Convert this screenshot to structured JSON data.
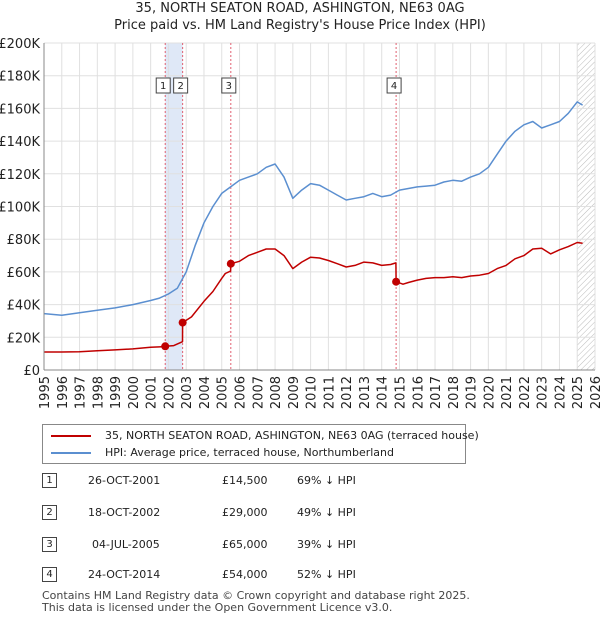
{
  "colors": {
    "price_line": "#c00000",
    "hpi_line": "#5b8fd0",
    "grid": "#e0e0e0",
    "shade": "#dfe8f7",
    "marker_vline": "#e06070",
    "future_hatch": "#bbbbbb"
  },
  "chart_data": {
    "type": "line",
    "title": "35, NORTH SEATON ROAD, ASHINGTON, NE63 0AG",
    "subtitle": "Price paid vs. HM Land Registry's House Price Index (HPI)",
    "x_ticks": [
      "1995",
      "1996",
      "1997",
      "1998",
      "1999",
      "2000",
      "2001",
      "2002",
      "2003",
      "2004",
      "2005",
      "2006",
      "2007",
      "2008",
      "2009",
      "2010",
      "2011",
      "2012",
      "2013",
      "2014",
      "2015",
      "2016",
      "2017",
      "2018",
      "2019",
      "2020",
      "2021",
      "2022",
      "2023",
      "2024",
      "2025",
      "2026"
    ],
    "y_ticks": [
      "£0",
      "£20K",
      "£40K",
      "£60K",
      "£80K",
      "£100K",
      "£120K",
      "£140K",
      "£160K",
      "£180K",
      "£200K"
    ],
    "xlim": [
      1995,
      2026
    ],
    "ylim": [
      0,
      200000
    ],
    "series": [
      {
        "name": "35, NORTH SEATON ROAD, ASHINGTON, NE63 0AG (terraced house)",
        "x": [
          1995.0,
          1996.0,
          1997.0,
          1998.0,
          1999.0,
          2000.0,
          2001.0,
          2001.82,
          2001.83,
          2002.3,
          2002.79,
          2002.8,
          2003.3,
          2004.0,
          2004.5,
          2005.0,
          2005.2,
          2005.5,
          2005.51,
          2006.0,
          2006.5,
          2007.0,
          2007.5,
          2008.0,
          2008.5,
          2009.0,
          2009.5,
          2010.0,
          2010.5,
          2011.0,
          2011.5,
          2012.0,
          2012.5,
          2013.0,
          2013.5,
          2014.0,
          2014.5,
          2014.8,
          2014.81,
          2015.2,
          2015.5,
          2016.0,
          2016.5,
          2017.0,
          2017.5,
          2018.0,
          2018.5,
          2019.0,
          2019.5,
          2020.0,
          2020.5,
          2021.0,
          2021.5,
          2022.0,
          2022.5,
          2023.0,
          2023.5,
          2024.0,
          2024.5,
          2025.0,
          2025.3
        ],
        "values": [
          11000,
          11000,
          11200,
          11800,
          12300,
          12900,
          13900,
          14300,
          14500,
          14900,
          17300,
          29000,
          32500,
          42000,
          48000,
          56000,
          59000,
          60500,
          65000,
          66500,
          70000,
          72000,
          74000,
          74000,
          70000,
          62000,
          66000,
          69000,
          68500,
          67000,
          65000,
          63000,
          64000,
          66000,
          65500,
          64000,
          64500,
          65500,
          54000,
          52500,
          53500,
          55000,
          56000,
          56500,
          56500,
          57000,
          56500,
          57500,
          58000,
          59000,
          62000,
          64000,
          68000,
          70000,
          74000,
          74500,
          71000,
          73500,
          75500,
          78000,
          77500
        ]
      },
      {
        "name": "HPI: Average price, terraced house, Northumberland",
        "x": [
          1995.0,
          1996.0,
          1997.0,
          1998.0,
          1999.0,
          2000.0,
          2001.0,
          2001.5,
          2002.0,
          2002.5,
          2003.0,
          2003.5,
          2004.0,
          2004.5,
          2005.0,
          2005.5,
          2006.0,
          2006.5,
          2007.0,
          2007.5,
          2008.0,
          2008.5,
          2009.0,
          2009.5,
          2010.0,
          2010.5,
          2011.0,
          2011.5,
          2012.0,
          2012.5,
          2013.0,
          2013.5,
          2014.0,
          2014.5,
          2015.0,
          2015.5,
          2016.0,
          2016.5,
          2017.0,
          2017.5,
          2018.0,
          2018.5,
          2019.0,
          2019.5,
          2020.0,
          2020.5,
          2021.0,
          2021.5,
          2022.0,
          2022.5,
          2023.0,
          2023.5,
          2024.0,
          2024.5,
          2025.0,
          2025.3
        ],
        "values": [
          34500,
          33500,
          35000,
          36500,
          38000,
          40000,
          42500,
          44000,
          46500,
          50000,
          60000,
          76000,
          90000,
          100000,
          108000,
          112000,
          116000,
          118000,
          120000,
          124000,
          126000,
          118000,
          105000,
          110000,
          114000,
          113000,
          110000,
          107000,
          104000,
          105000,
          106000,
          108000,
          106000,
          107000,
          110000,
          111000,
          112000,
          112500,
          113000,
          115000,
          116000,
          115500,
          118000,
          120000,
          124000,
          132000,
          140000,
          146000,
          150000,
          152000,
          148000,
          150000,
          152000,
          157000,
          164000,
          162000
        ]
      }
    ],
    "sales": [
      {
        "label": "1",
        "x": 2001.82,
        "price": 14500
      },
      {
        "label": "2",
        "x": 2002.8,
        "price": 29000
      },
      {
        "label": "3",
        "x": 2005.51,
        "price": 65000
      },
      {
        "label": "4",
        "x": 2014.81,
        "price": 54000
      }
    ],
    "shaded_span": [
      2001.82,
      2002.8
    ],
    "future_from": 2025.0
  },
  "legend": {
    "property_label": "35, NORTH SEATON ROAD, ASHINGTON, NE63 0AG (terraced house)",
    "hpi_label": "HPI: Average price, terraced house, Northumberland"
  },
  "sales_table": [
    {
      "num": "1",
      "date": "26-OCT-2001",
      "price": "£14,500",
      "hpi": "69% ↓ HPI"
    },
    {
      "num": "2",
      "date": "18-OCT-2002",
      "price": "£29,000",
      "hpi": "49% ↓ HPI"
    },
    {
      "num": "3",
      "date": "04-JUL-2005",
      "price": "£65,000",
      "hpi": "39% ↓ HPI"
    },
    {
      "num": "4",
      "date": "24-OCT-2014",
      "price": "£54,000",
      "hpi": "52% ↓ HPI"
    }
  ],
  "footer": {
    "line1": "Contains HM Land Registry data © Crown copyright and database right 2025.",
    "line2": "This data is licensed under the Open Government Licence v3.0."
  }
}
